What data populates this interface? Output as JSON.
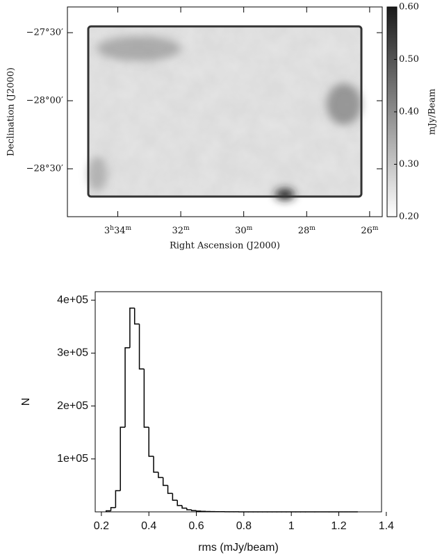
{
  "chart_data": [
    {
      "type": "heatmap",
      "xlabel": "Right Ascension (J2000)",
      "ylabel": "Declination (J2000)",
      "colorbar_label": "mJy/Beam",
      "xlim": [
        35.6,
        25.6
      ],
      "xticks": [
        {
          "value": 34,
          "label": "3h34m"
        },
        {
          "value": 32,
          "label": "32m"
        },
        {
          "value": 30,
          "label": "30m"
        },
        {
          "value": 28,
          "label": "28m"
        },
        {
          "value": 26,
          "label": "26m"
        }
      ],
      "ylim": [
        -28.852,
        -27.311
      ],
      "yticks": [
        {
          "value": -27.5,
          "label": "−27°30′"
        },
        {
          "value": -28,
          "label": "−28°00′"
        },
        {
          "value": -28.5,
          "label": "−28°30′"
        }
      ],
      "clim": [
        0.2,
        0.6
      ],
      "cticks": [
        {
          "value": 0.6,
          "label": "0.60"
        },
        {
          "value": 0.5,
          "label": "0.50"
        },
        {
          "value": 0.4,
          "label": "0.40"
        },
        {
          "value": 0.3,
          "label": "0.30"
        },
        {
          "value": 0.2,
          "label": "0.20"
        }
      ],
      "colormap": [
        "#ffffff",
        "#1a1a1a"
      ]
    },
    {
      "type": "histogram",
      "xlabel": "rms (mJy/beam)",
      "ylabel": "N",
      "bins": [
        0.22,
        0.24,
        0.26,
        0.28,
        0.3,
        0.32,
        0.34,
        0.36,
        0.38,
        0.4,
        0.42,
        0.44,
        0.46,
        0.48,
        0.5,
        0.52,
        0.54,
        0.56,
        0.58,
        0.6,
        0.62,
        0.64,
        0.66,
        0.68,
        0.7,
        0.72,
        0.74,
        0.76,
        0.78,
        0.8,
        0.82,
        0.84,
        0.86,
        0.88,
        0.9,
        0.92,
        0.94,
        0.96,
        0.98,
        1,
        1.02,
        1.04,
        1.06,
        1.08,
        1.1,
        1.12,
        1.14,
        1.16,
        1.18,
        1.2,
        1.22,
        1.24,
        1.26,
        1.28
      ],
      "values": [
        2000,
        8000,
        40000,
        160000,
        310000,
        385000,
        355000,
        270000,
        160000,
        105000,
        75000,
        65000,
        50000,
        35000,
        22000,
        12000,
        7000,
        4000,
        2500,
        1500,
        1000,
        700,
        500,
        350,
        250,
        180,
        130,
        100,
        80,
        60,
        50,
        40,
        30,
        25,
        20,
        15,
        12,
        10,
        8,
        6,
        5,
        4,
        3,
        3,
        2,
        2,
        2,
        1,
        1,
        1,
        1,
        1,
        1
      ],
      "color": "#000000",
      "xlim": [
        0.174,
        1.38
      ],
      "xticks": [
        0.2,
        0.4,
        0.6,
        0.8,
        1,
        1.2,
        1.4
      ],
      "ylim": [
        0,
        416000
      ],
      "yticks": [
        {
          "value": 100000,
          "label": "1e+05"
        },
        {
          "value": 200000,
          "label": "2e+05"
        },
        {
          "value": 300000,
          "label": "3e+05"
        },
        {
          "value": 400000,
          "label": "4e+05"
        }
      ]
    }
  ]
}
